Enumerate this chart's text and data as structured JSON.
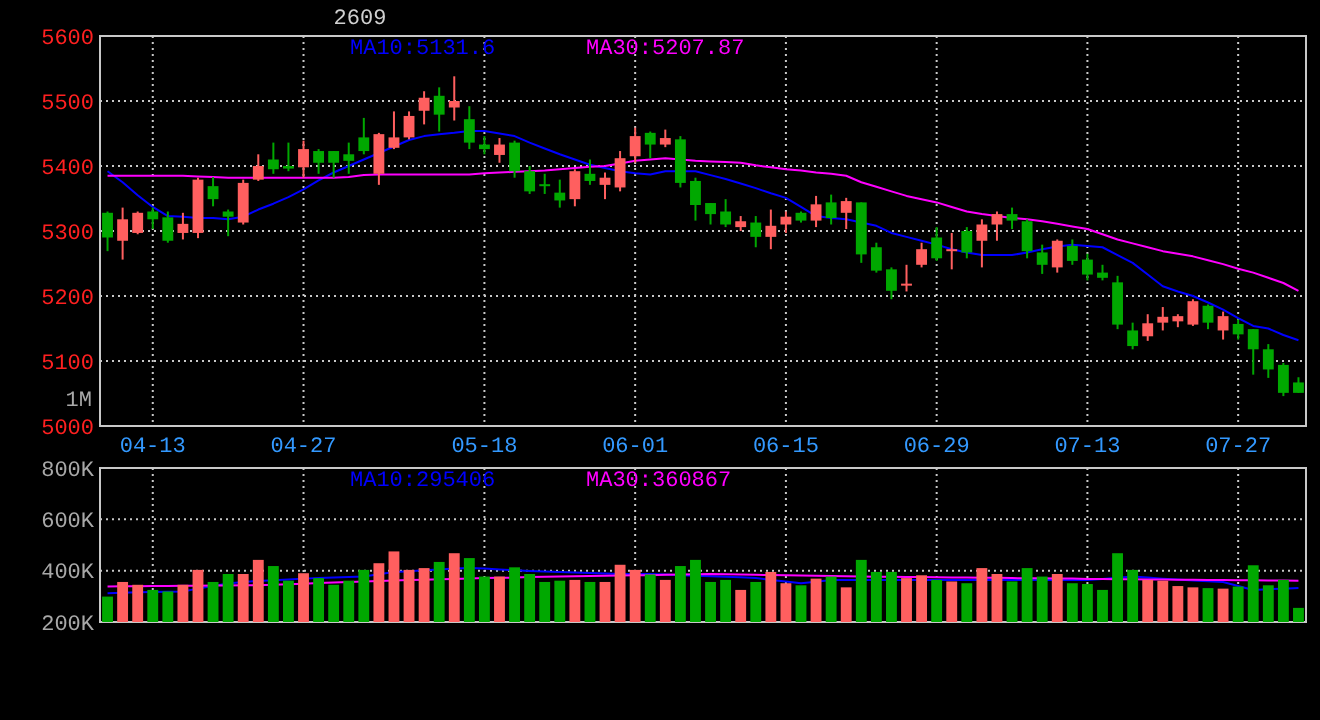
{
  "chart_data": [
    {
      "type": "candlestick",
      "title": "2609",
      "annotations": [
        "1M"
      ],
      "categories": [
        null,
        null,
        null,
        "04-13",
        null,
        null,
        null,
        null,
        null,
        null,
        null,
        null,
        null,
        "04-27",
        null,
        null,
        null,
        null,
        null,
        null,
        null,
        null,
        null,
        null,
        null,
        "05-18",
        null,
        null,
        null,
        null,
        null,
        null,
        null,
        null,
        null,
        "06-01",
        null,
        null,
        null,
        null,
        null,
        null,
        null,
        null,
        null,
        "06-15",
        null,
        null,
        null,
        null,
        null,
        null,
        null,
        null,
        null,
        "06-29",
        null,
        null,
        null,
        null,
        null,
        null,
        null,
        null,
        null,
        "07-13",
        null,
        null,
        null,
        null,
        null,
        null,
        null,
        null,
        null,
        "07-27",
        null,
        null,
        null,
        null
      ],
      "ohlc": [
        [
          5328,
          5330,
          5269,
          5290
        ],
        [
          5285,
          5336,
          5256,
          5318
        ],
        [
          5297,
          5330,
          5295,
          5328
        ],
        [
          5330,
          5336,
          5303,
          5318
        ],
        [
          5321,
          5330,
          5282,
          5285
        ],
        [
          5297,
          5328,
          5287,
          5311
        ],
        [
          5297,
          5382,
          5289,
          5379
        ],
        [
          5369,
          5383,
          5338,
          5349
        ],
        [
          5330,
          5333,
          5292,
          5322
        ],
        [
          5313,
          5379,
          5310,
          5374
        ],
        [
          5379,
          5418,
          5377,
          5400
        ],
        [
          5410,
          5436,
          5388,
          5395
        ],
        [
          5400,
          5436,
          5392,
          5396
        ],
        [
          5398,
          5439,
          5382,
          5426
        ],
        [
          5423,
          5426,
          5388,
          5405
        ],
        [
          5423,
          5423,
          5382,
          5405
        ],
        [
          5418,
          5436,
          5388,
          5408
        ],
        [
          5444,
          5474,
          5418,
          5423
        ],
        [
          5388,
          5451,
          5371,
          5449
        ],
        [
          5428,
          5484,
          5426,
          5444
        ],
        [
          5444,
          5484,
          5441,
          5477
        ],
        [
          5485,
          5515,
          5464,
          5505
        ],
        [
          5508,
          5521,
          5453,
          5479
        ],
        [
          5490,
          5538,
          5470,
          5500
        ],
        [
          5472,
          5492,
          5426,
          5436
        ],
        [
          5433,
          5446,
          5418,
          5426
        ],
        [
          5417,
          5443,
          5405,
          5433
        ],
        [
          5436,
          5439,
          5382,
          5392
        ],
        [
          5392,
          5400,
          5357,
          5361
        ],
        [
          5372,
          5388,
          5357,
          5369
        ],
        [
          5359,
          5379,
          5336,
          5347
        ],
        [
          5349,
          5395,
          5338,
          5392
        ],
        [
          5388,
          5410,
          5371,
          5377
        ],
        [
          5371,
          5390,
          5349,
          5382
        ],
        [
          5367,
          5423,
          5361,
          5412
        ],
        [
          5415,
          5459,
          5405,
          5446
        ],
        [
          5451,
          5453,
          5412,
          5433
        ],
        [
          5433,
          5456,
          5429,
          5443
        ],
        [
          5441,
          5446,
          5367,
          5374
        ],
        [
          5377,
          5382,
          5316,
          5340
        ],
        [
          5343,
          5343,
          5310,
          5326
        ],
        [
          5330,
          5349,
          5306,
          5310
        ],
        [
          5306,
          5323,
          5300,
          5315
        ],
        [
          5313,
          5323,
          5275,
          5291
        ],
        [
          5291,
          5333,
          5272,
          5308
        ],
        [
          5310,
          5330,
          5297,
          5322
        ],
        [
          5328,
          5330,
          5313,
          5316
        ],
        [
          5316,
          5354,
          5306,
          5341
        ],
        [
          5344,
          5356,
          5310,
          5320
        ],
        [
          5328,
          5351,
          5303,
          5346
        ],
        [
          5344,
          5344,
          5251,
          5264
        ],
        [
          5275,
          5282,
          5236,
          5239
        ],
        [
          5241,
          5244,
          5195,
          5208
        ],
        [
          5217,
          5248,
          5207,
          5219
        ],
        [
          5248,
          5282,
          5244,
          5272
        ],
        [
          5290,
          5306,
          5254,
          5258
        ],
        [
          5269,
          5297,
          5241,
          5272
        ],
        [
          5300,
          5306,
          5258,
          5267
        ],
        [
          5285,
          5318,
          5244,
          5310
        ],
        [
          5310,
          5330,
          5285,
          5326
        ],
        [
          5326,
          5336,
          5303,
          5316
        ],
        [
          5315,
          5318,
          5258,
          5269
        ],
        [
          5267,
          5279,
          5234,
          5248
        ],
        [
          5244,
          5287,
          5236,
          5285
        ],
        [
          5277,
          5287,
          5248,
          5254
        ],
        [
          5256,
          5265,
          5224,
          5233
        ],
        [
          5236,
          5248,
          5224,
          5228
        ],
        [
          5221,
          5231,
          5149,
          5156
        ],
        [
          5147,
          5159,
          5118,
          5123
        ],
        [
          5138,
          5172,
          5131,
          5158
        ],
        [
          5159,
          5183,
          5147,
          5168
        ],
        [
          5161,
          5172,
          5152,
          5169
        ],
        [
          5156,
          5195,
          5154,
          5192
        ],
        [
          5185,
          5187,
          5149,
          5159
        ],
        [
          5147,
          5176,
          5133,
          5169
        ],
        [
          5157,
          5164,
          5133,
          5141
        ],
        [
          5149,
          5149,
          5079,
          5118
        ],
        [
          5118,
          5126,
          5074,
          5087
        ],
        [
          5094,
          5097,
          5046,
          5051
        ],
        [
          5067,
          5075,
          5051,
          5051
        ]
      ],
      "colors": [
        "#00a800",
        "#ff5f5f",
        "#ff5f5f",
        "#00a800",
        "#00a800",
        "#ff5f5f",
        "#ff5f5f",
        "#00a800",
        "#00a800",
        "#ff5f5f",
        "#ff5f5f",
        "#00a800",
        "#00a800",
        "#ff5f5f",
        "#00a800",
        "#00a800",
        "#00a800",
        "#00a800",
        "#ff5f5f",
        "#ff5f5f",
        "#ff5f5f",
        "#ff5f5f",
        "#00a800",
        "#ff5f5f",
        "#00a800",
        "#00a800",
        "#ff5f5f",
        "#00a800",
        "#00a800",
        "#00a800",
        "#00a800",
        "#ff5f5f",
        "#00a800",
        "#ff5f5f",
        "#ff5f5f",
        "#ff5f5f",
        "#00a800",
        "#ff5f5f",
        "#00a800",
        "#00a800",
        "#00a800",
        "#00a800",
        "#ff5f5f",
        "#00a800",
        "#ff5f5f",
        "#ff5f5f",
        "#00a800",
        "#ff5f5f",
        "#00a800",
        "#ff5f5f",
        "#00a800",
        "#00a800",
        "#00a800",
        "#ff5f5f",
        "#ff5f5f",
        "#00a800",
        "#ff5f5f",
        "#00a800",
        "#ff5f5f",
        "#ff5f5f",
        "#00a800",
        "#00a800",
        "#00a800",
        "#ff5f5f",
        "#00a800",
        "#00a800",
        "#00a800",
        "#00a800",
        "#00a800",
        "#ff5f5f",
        "#ff5f5f",
        "#ff5f5f",
        "#ff5f5f",
        "#00a800",
        "#ff5f5f",
        "#00a800",
        "#00a800",
        "#00a800",
        "#00a800",
        "#00a800"
      ],
      "series": [
        {
          "type": "line",
          "name": "MA10:5131.6",
          "color": "#0000ff",
          "values": [
            5392,
            5375,
            5355,
            5337,
            5323,
            5322,
            5320,
            5320,
            5318,
            5322,
            5333,
            5342,
            5352,
            5364,
            5378,
            5390,
            5400,
            5410,
            5420,
            5430,
            5440,
            5446,
            5449,
            5451,
            5454,
            5454,
            5450,
            5446,
            5436,
            5427,
            5418,
            5410,
            5402,
            5397,
            5392,
            5389,
            5387,
            5392,
            5392,
            5392,
            5386,
            5380,
            5373,
            5366,
            5358,
            5351,
            5337,
            5323,
            5320,
            5318,
            5313,
            5308,
            5297,
            5291,
            5285,
            5279,
            5272,
            5267,
            5263,
            5263,
            5263,
            5267,
            5272,
            5276,
            5279,
            5277,
            5275,
            5263,
            5251,
            5233,
            5215,
            5207,
            5200,
            5190,
            5179,
            5166,
            5154,
            5150,
            5140,
            5132
          ]
        },
        {
          "type": "line",
          "name": "MA30:5207.87",
          "color": "#ff00ff",
          "values": [
            5385,
            5385,
            5385,
            5385,
            5385,
            5385,
            5384,
            5383,
            5382,
            5382,
            5382,
            5382,
            5382,
            5382,
            5382,
            5382,
            5383,
            5386,
            5387,
            5387,
            5387,
            5387,
            5387,
            5387,
            5387,
            5389,
            5390,
            5391,
            5392,
            5393,
            5395,
            5397,
            5399,
            5400,
            5404,
            5408,
            5410,
            5412,
            5410,
            5408,
            5407,
            5406,
            5405,
            5401,
            5398,
            5395,
            5393,
            5390,
            5388,
            5385,
            5375,
            5368,
            5361,
            5354,
            5349,
            5344,
            5337,
            5330,
            5326,
            5323,
            5320,
            5318,
            5315,
            5311,
            5307,
            5303,
            5295,
            5287,
            5281,
            5275,
            5269,
            5265,
            5261,
            5255,
            5249,
            5242,
            5236,
            5228,
            5220,
            5208
          ]
        }
      ],
      "ylim": [
        5000,
        5600
      ],
      "yticks": [
        5000,
        5100,
        5200,
        5300,
        5400,
        5500,
        5600
      ],
      "grid": true,
      "legend": "top"
    },
    {
      "type": "bar",
      "tick_labels": "y",
      "categories": [
        null,
        null,
        null,
        null,
        null,
        null,
        null,
        null,
        null,
        null,
        null,
        null,
        null,
        null,
        null,
        null,
        null,
        null,
        null,
        null,
        null,
        null,
        null,
        null,
        null,
        null,
        null,
        null,
        null,
        null,
        null,
        null,
        null,
        null,
        null,
        null,
        null,
        null,
        null,
        null,
        null,
        null,
        null,
        null,
        null,
        null,
        null,
        null,
        null,
        null,
        null,
        null,
        null,
        null,
        null,
        null,
        null,
        null,
        null,
        null,
        null,
        null,
        null,
        null,
        null,
        null,
        null,
        null,
        null,
        null,
        null,
        null,
        null,
        null,
        null,
        null,
        null,
        null,
        null,
        null
      ],
      "values": [
        299000,
        356000,
        345000,
        325000,
        319000,
        345000,
        403000,
        356000,
        387000,
        387000,
        442000,
        418000,
        361000,
        390000,
        371000,
        345000,
        361000,
        403000,
        429000,
        475000,
        403000,
        410000,
        434000,
        468000,
        449000,
        377000,
        377000,
        413000,
        387000,
        356000,
        361000,
        364000,
        356000,
        356000,
        423000,
        403000,
        385000,
        364000,
        418000,
        442000,
        356000,
        364000,
        325000,
        356000,
        395000,
        351000,
        343000,
        369000,
        377000,
        335000,
        442000,
        395000,
        395000,
        371000,
        382000,
        364000,
        358000,
        351000,
        410000,
        387000,
        358000,
        410000,
        377000,
        387000,
        351000,
        348000,
        325000,
        468000,
        403000,
        364000,
        361000,
        340000,
        335000,
        332000,
        330000,
        338000,
        421000,
        343000,
        364000,
        255000
      ],
      "colors": [
        "#00a800",
        "#ff5f5f",
        "#ff5f5f",
        "#00a800",
        "#00a800",
        "#ff5f5f",
        "#ff5f5f",
        "#00a800",
        "#00a800",
        "#ff5f5f",
        "#ff5f5f",
        "#00a800",
        "#00a800",
        "#ff5f5f",
        "#00a800",
        "#00a800",
        "#00a800",
        "#00a800",
        "#ff5f5f",
        "#ff5f5f",
        "#ff5f5f",
        "#ff5f5f",
        "#00a800",
        "#ff5f5f",
        "#00a800",
        "#00a800",
        "#ff5f5f",
        "#00a800",
        "#00a800",
        "#00a800",
        "#00a800",
        "#ff5f5f",
        "#00a800",
        "#ff5f5f",
        "#ff5f5f",
        "#ff5f5f",
        "#00a800",
        "#ff5f5f",
        "#00a800",
        "#00a800",
        "#00a800",
        "#00a800",
        "#ff5f5f",
        "#00a800",
        "#ff5f5f",
        "#ff5f5f",
        "#00a800",
        "#ff5f5f",
        "#00a800",
        "#ff5f5f",
        "#00a800",
        "#00a800",
        "#00a800",
        "#ff5f5f",
        "#ff5f5f",
        "#00a800",
        "#ff5f5f",
        "#00a800",
        "#ff5f5f",
        "#ff5f5f",
        "#00a800",
        "#00a800",
        "#00a800",
        "#ff5f5f",
        "#00a800",
        "#00a800",
        "#00a800",
        "#00a800",
        "#00a800",
        "#ff5f5f",
        "#ff5f5f",
        "#ff5f5f",
        "#ff5f5f",
        "#00a800",
        "#ff5f5f",
        "#00a800",
        "#00a800",
        "#00a800",
        "#00a800",
        "#00a800"
      ],
      "series": [
        {
          "type": "line",
          "name": "MA10:295406",
          "color": "#0000ff",
          "values": [
            312000,
            314000,
            316000,
            317000,
            318000,
            319000,
            330000,
            340000,
            350000,
            356000,
            360000,
            363000,
            366000,
            369000,
            371000,
            373000,
            375000,
            377000,
            386000,
            395000,
            398000,
            402000,
            405000,
            408000,
            410000,
            408000,
            405000,
            402000,
            399000,
            397000,
            395000,
            393000,
            391000,
            389000,
            387000,
            387000,
            387000,
            385000,
            382000,
            380000,
            378000,
            376000,
            374000,
            371000,
            364000,
            358000,
            351000,
            357000,
            364000,
            364000,
            364000,
            364000,
            364000,
            364000,
            364000,
            364000,
            364000,
            364000,
            364000,
            364000,
            364000,
            364000,
            364000,
            364000,
            364000,
            364000,
            368000,
            372000,
            377000,
            373000,
            369000,
            366000,
            362000,
            359000,
            356000,
            340000,
            325000,
            328000,
            330000,
            332000
          ]
        },
        {
          "type": "line",
          "name": "MA30:360867",
          "color": "#ff00ff",
          "values": [
            338000,
            339000,
            339000,
            340000,
            340000,
            341000,
            341000,
            342000,
            342000,
            343000,
            343000,
            345000,
            347000,
            349000,
            352000,
            354000,
            356000,
            358000,
            360000,
            362000,
            364000,
            365000,
            367000,
            368000,
            369000,
            371000,
            372000,
            373000,
            375000,
            376000,
            377000,
            378000,
            379000,
            380000,
            381000,
            382000,
            382000,
            384000,
            385000,
            386000,
            387000,
            386000,
            385000,
            384000,
            383000,
            382000,
            381000,
            380000,
            379000,
            378000,
            377000,
            376000,
            376000,
            375000,
            375000,
            374000,
            373000,
            373000,
            372000,
            372000,
            371000,
            370000,
            370000,
            369000,
            369000,
            368000,
            368000,
            367000,
            367000,
            366000,
            366000,
            365000,
            365000,
            364000,
            364000,
            363000,
            363000,
            362000,
            362000,
            361000
          ]
        }
      ],
      "ylim": [
        200000,
        800000
      ],
      "yticks": [
        {
          "value": 200000,
          "label": "200K"
        },
        {
          "value": 400000,
          "label": "400K"
        },
        {
          "value": 600000,
          "label": "600K"
        },
        {
          "value": 800000,
          "label": "800K"
        }
      ],
      "grid": true,
      "legend": "top"
    }
  ]
}
